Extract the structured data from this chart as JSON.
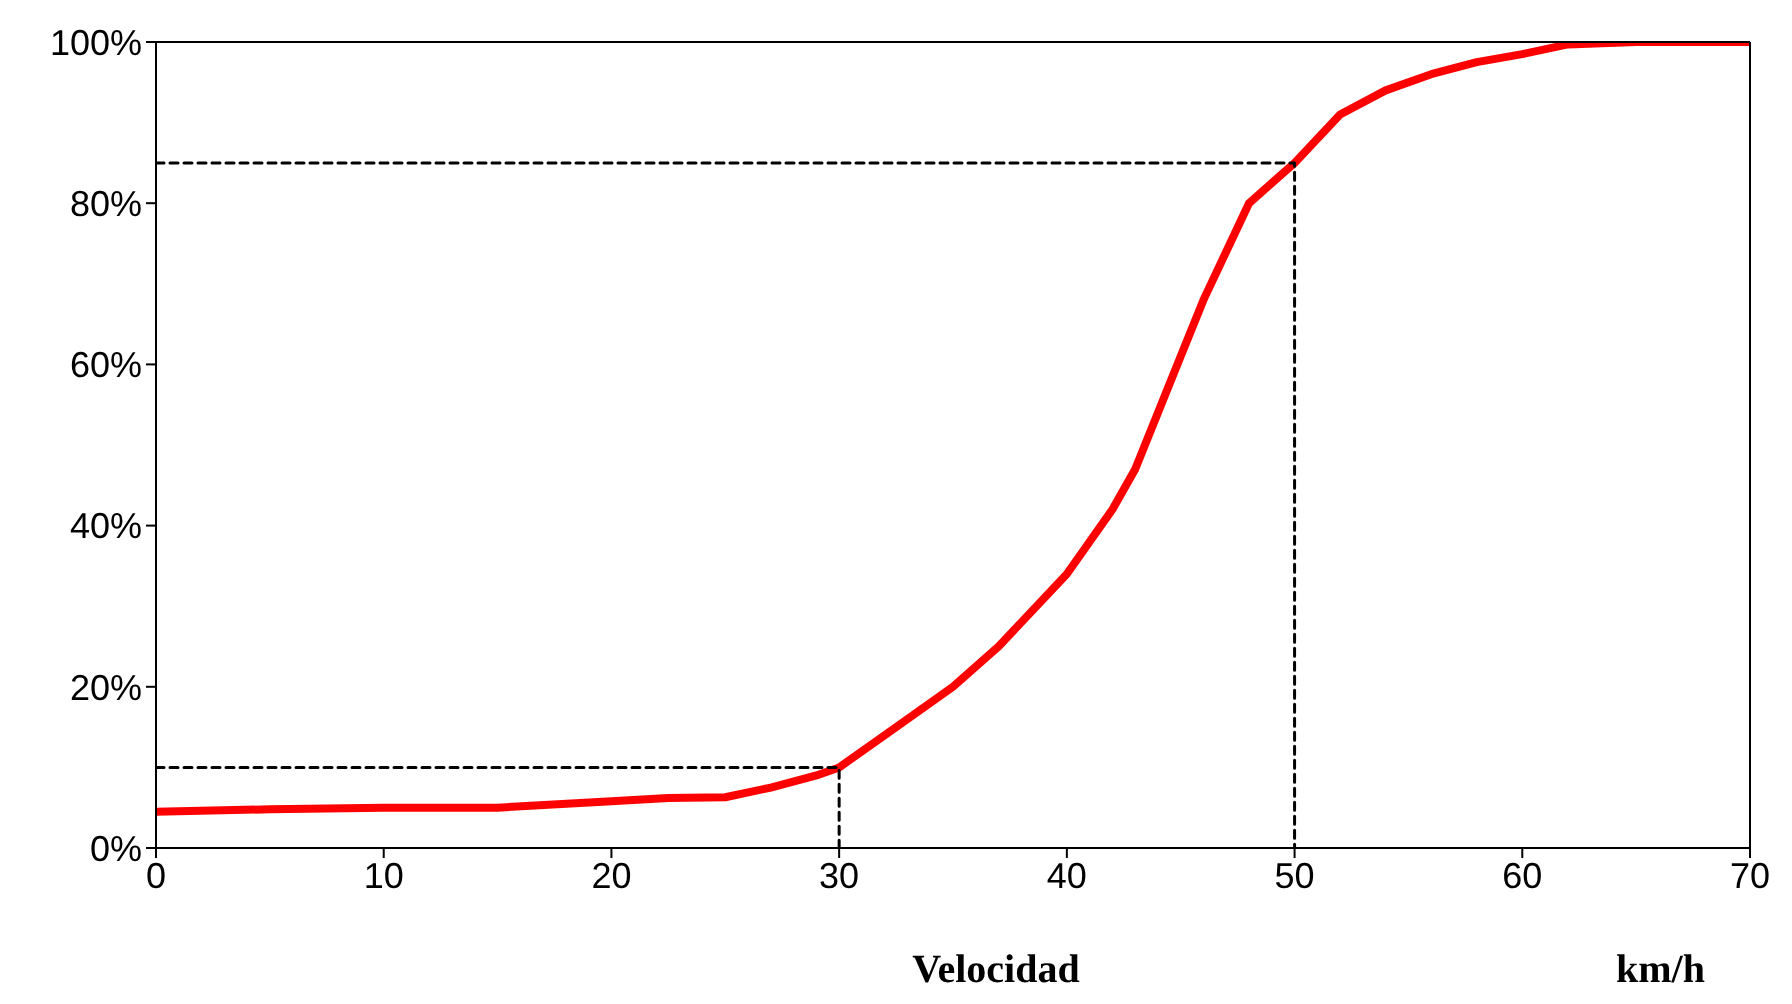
{
  "chart_data": {
    "type": "line",
    "xlabel": "Velocidad",
    "annotations": [
      "km/h"
    ],
    "xlim": [
      0,
      70
    ],
    "xticks": [
      0,
      10,
      20,
      30,
      40,
      50,
      60,
      70
    ],
    "ylim": [
      0,
      100
    ],
    "yticks": [
      {
        "value": 0,
        "label": "0%"
      },
      {
        "value": 20,
        "label": "20%"
      },
      {
        "value": 40,
        "label": "40%"
      },
      {
        "value": 60,
        "label": "60%"
      },
      {
        "value": 80,
        "label": "80%"
      },
      {
        "value": 100,
        "label": "100%"
      }
    ],
    "grid": false,
    "legend": false,
    "marker": "none",
    "series": [
      {
        "color": "#ff0000",
        "line_style": "solid",
        "x": [
          0,
          5,
          10,
          15,
          20,
          22.5,
          25,
          27,
          29,
          30,
          32,
          35,
          37,
          40,
          42,
          43,
          44,
          45,
          46,
          48,
          50,
          52,
          54,
          56,
          58,
          60,
          62,
          65,
          70
        ],
        "values": [
          4.5,
          4.8,
          5,
          5,
          5.8,
          6.2,
          6.3,
          7.5,
          9,
          10,
          14,
          20,
          25,
          34,
          42,
          47,
          54,
          61,
          68,
          80,
          85,
          91,
          94,
          96,
          97.5,
          98.5,
          99.7,
          100,
          100
        ]
      },
      {
        "color": "#000000",
        "line_style": "dashed",
        "x": [
          0,
          30,
          30
        ],
        "values": [
          10,
          10,
          0
        ]
      },
      {
        "color": "#000000",
        "line_style": "dashed",
        "x": [
          0,
          50,
          50
        ],
        "values": [
          85,
          85,
          0
        ]
      }
    ]
  }
}
